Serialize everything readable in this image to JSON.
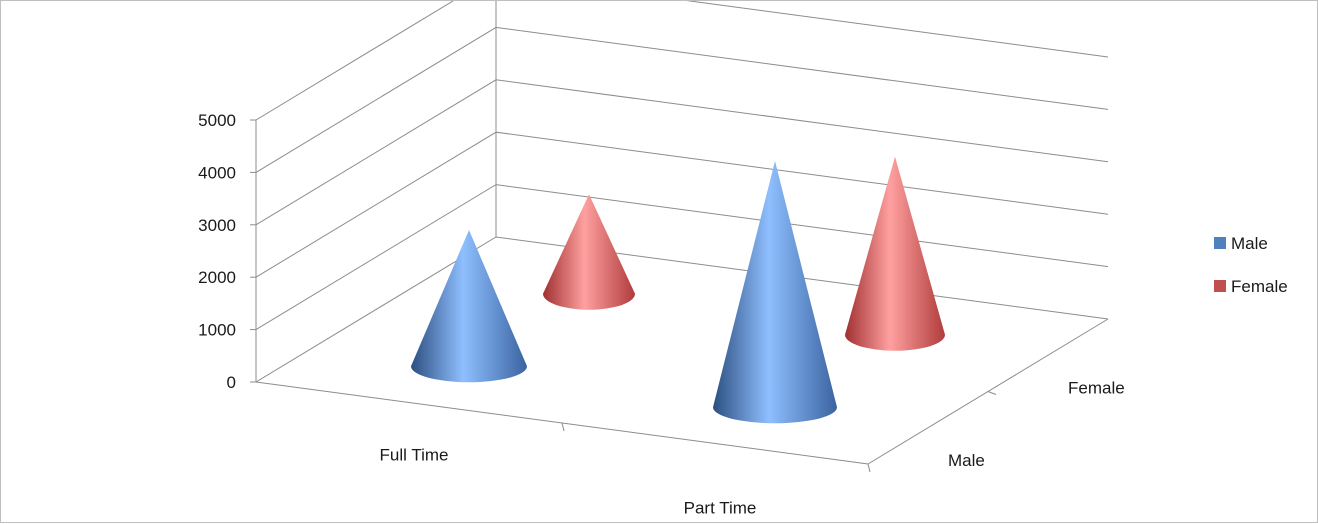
{
  "chart_data": {
    "type": "bar",
    "style": "3d-cone",
    "title": "",
    "xlabel": "",
    "ylabel": "",
    "categories": [
      "Full Time",
      "Part Time"
    ],
    "depth_labels": [
      "Male",
      "Female"
    ],
    "ylim": [
      0,
      5000
    ],
    "yticks": [
      "0",
      "1000",
      "2000",
      "3000",
      "4000",
      "5000"
    ],
    "grid": true,
    "legend_position": "right",
    "series": [
      {
        "name": "Male",
        "color": "#4f81bd",
        "values": [
          2600,
          4700
        ]
      },
      {
        "name": "Female",
        "color": "#c0504d",
        "values": [
          1900,
          3400
        ]
      }
    ]
  }
}
